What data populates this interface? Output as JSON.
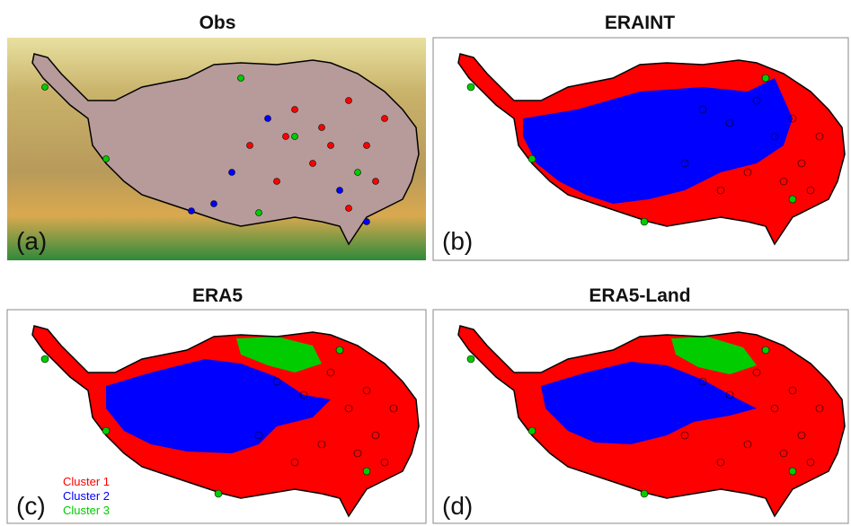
{
  "panels": [
    {
      "title": "Obs",
      "label": "(a)"
    },
    {
      "title": "ERAINT",
      "label": "(b)"
    },
    {
      "title": "ERA5",
      "label": "(c)"
    },
    {
      "title": "ERA5-Land",
      "label": "(d)"
    }
  ],
  "legend": [
    {
      "name": "Cluster 1",
      "color": "#ff0000"
    },
    {
      "name": "Cluster 2",
      "color": "#0000ff"
    },
    {
      "name": "Cluster 3",
      "color": "#00cc00"
    }
  ]
}
